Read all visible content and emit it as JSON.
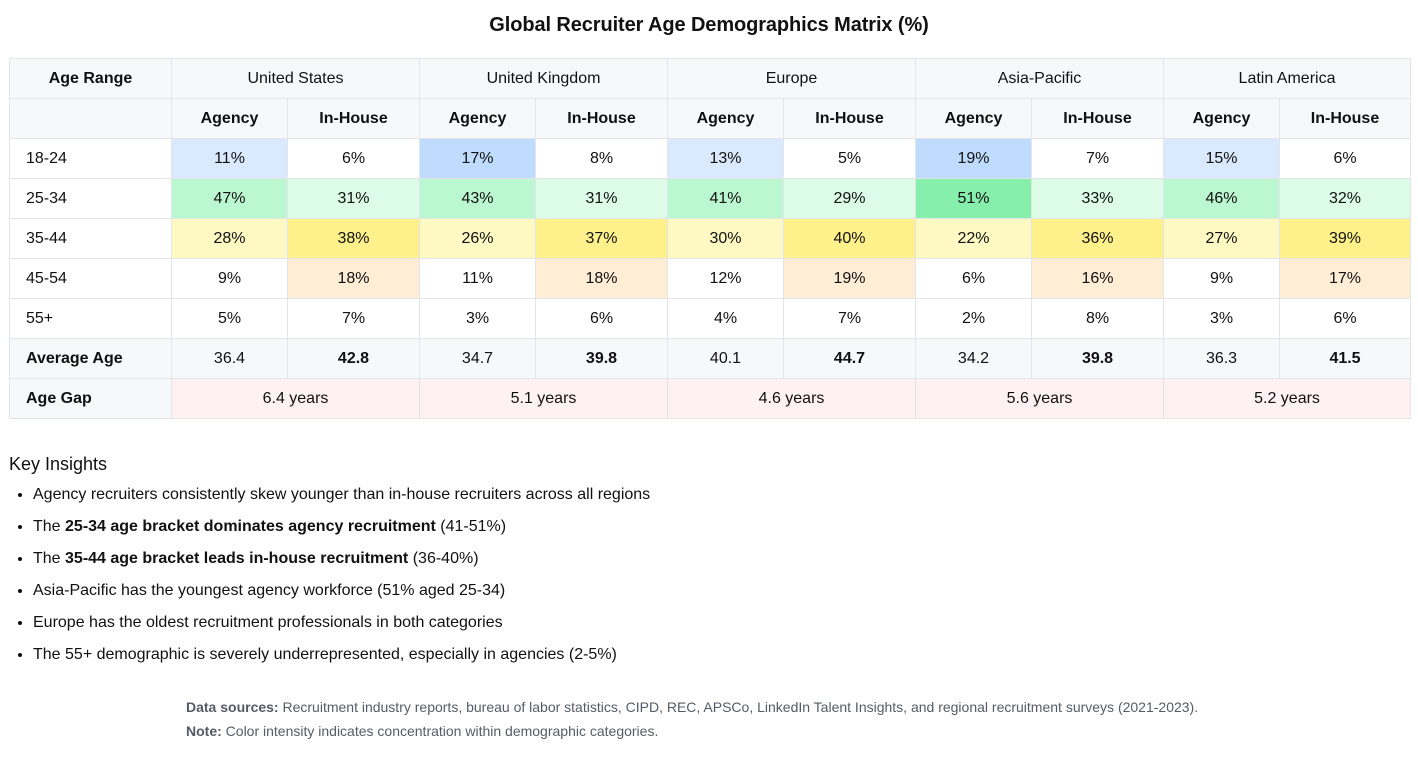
{
  "title": "Global Recruiter Age Demographics Matrix (%)",
  "chart_data": {
    "type": "table",
    "title": "Global Recruiter Age Demographics Matrix (%)",
    "row_header": "Age Range",
    "sub_columns": [
      "Agency",
      "In-House"
    ],
    "regions": [
      "United States",
      "United Kingdom",
      "Europe",
      "Asia-Pacific",
      "Latin America"
    ],
    "rows": [
      {
        "label": "18-24",
        "cells": [
          "11%",
          "6%",
          "17%",
          "8%",
          "13%",
          "5%",
          "19%",
          "7%",
          "15%",
          "6%"
        ],
        "values": [
          11,
          6,
          17,
          8,
          13,
          5,
          19,
          7,
          15,
          6
        ]
      },
      {
        "label": "25-34",
        "cells": [
          "47%",
          "31%",
          "43%",
          "31%",
          "41%",
          "29%",
          "51%",
          "33%",
          "46%",
          "32%"
        ],
        "values": [
          47,
          31,
          43,
          31,
          41,
          29,
          51,
          33,
          46,
          32
        ]
      },
      {
        "label": "35-44",
        "cells": [
          "28%",
          "38%",
          "26%",
          "37%",
          "30%",
          "40%",
          "22%",
          "36%",
          "27%",
          "39%"
        ],
        "values": [
          28,
          38,
          26,
          37,
          30,
          40,
          22,
          36,
          27,
          39
        ]
      },
      {
        "label": "45-54",
        "cells": [
          "9%",
          "18%",
          "11%",
          "18%",
          "12%",
          "19%",
          "6%",
          "16%",
          "9%",
          "17%"
        ],
        "values": [
          9,
          18,
          11,
          18,
          12,
          19,
          6,
          16,
          9,
          17
        ]
      },
      {
        "label": "55+",
        "cells": [
          "5%",
          "7%",
          "3%",
          "6%",
          "4%",
          "7%",
          "2%",
          "8%",
          "3%",
          "6%"
        ],
        "values": [
          5,
          7,
          3,
          6,
          4,
          7,
          2,
          8,
          3,
          6
        ]
      }
    ],
    "average_age": {
      "label": "Average Age",
      "cells": [
        "36.4",
        "42.8",
        "34.7",
        "39.8",
        "40.1",
        "44.7",
        "34.2",
        "39.8",
        "36.3",
        "41.5"
      ]
    },
    "age_gap": {
      "label": "Age Gap",
      "cells": [
        "6.4 years",
        "5.1 years",
        "4.6 years",
        "5.6 years",
        "5.2 years"
      ]
    },
    "colors": {
      "18-24": [
        "#dbe9fe",
        "#ffffff",
        "#bfdbfe",
        "#ffffff",
        "#dbe9fe",
        "#ffffff",
        "#bfdbfe",
        "#ffffff",
        "#dbe9fe",
        "#ffffff"
      ],
      "25-34": [
        "#bbf7d0",
        "#dcfce7",
        "#bbf7d0",
        "#dcfce7",
        "#bbf7d0",
        "#dcfce7",
        "#86efac",
        "#dcfce7",
        "#bbf7d0",
        "#dcfce7"
      ],
      "35-44": [
        "#fef9c3",
        "#fef08a",
        "#fef9c3",
        "#fef08a",
        "#fef9c3",
        "#fef08a",
        "#fef9c3",
        "#fef08a",
        "#fef9c3",
        "#fef08a"
      ],
      "45-54": [
        "#ffffff",
        "#ffedd5",
        "#ffffff",
        "#ffedd5",
        "#ffffff",
        "#ffedd5",
        "#ffffff",
        "#ffedd5",
        "#ffffff",
        "#ffedd5"
      ],
      "55+": [
        "#ffffff",
        "#ffffff",
        "#ffffff",
        "#ffffff",
        "#ffffff",
        "#ffffff",
        "#ffffff",
        "#ffffff",
        "#ffffff",
        "#ffffff"
      ]
    }
  },
  "insights": {
    "title": "Key Insights",
    "items": [
      {
        "pre": "Agency recruiters consistently skew younger than in-house recruiters across all regions",
        "bold": "",
        "post": ""
      },
      {
        "pre": "The ",
        "bold": "25-34 age bracket dominates agency recruitment",
        "post": " (41-51%)"
      },
      {
        "pre": "The ",
        "bold": "35-44 age bracket leads in-house recruitment",
        "post": " (36-40%)"
      },
      {
        "pre": "Asia-Pacific has the youngest agency workforce (51% aged 25-34)",
        "bold": "",
        "post": ""
      },
      {
        "pre": "Europe has the oldest recruitment professionals in both categories",
        "bold": "",
        "post": ""
      },
      {
        "pre": "The 55+ demographic is severely underrepresented, especially in agencies (2-5%)",
        "bold": "",
        "post": ""
      }
    ]
  },
  "footer": {
    "sources_label": "Data sources:",
    "sources_text": " Recruitment industry reports, bureau of labor statistics, CIPD, REC, APSCo, LinkedIn Talent Insights, and regional recruitment surveys (2021-2023).",
    "note_label": "Note:",
    "note_text": " Color intensity indicates concentration within demographic categories."
  }
}
